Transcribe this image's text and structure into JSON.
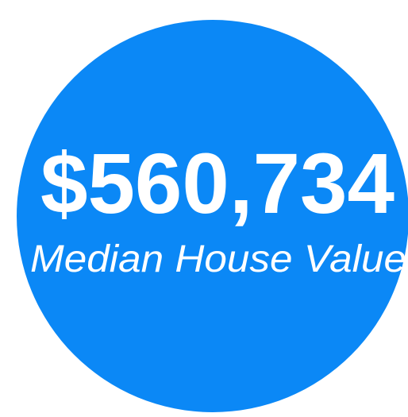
{
  "stat": {
    "value": "$560,734",
    "label": "Median House Value"
  }
}
